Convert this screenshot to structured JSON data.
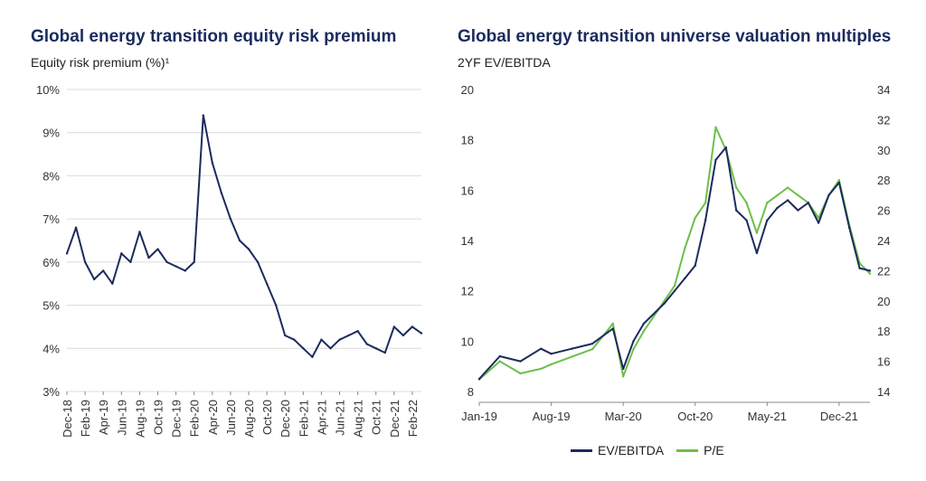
{
  "charts": {
    "left": {
      "title": "Global energy transition equity risk premium",
      "subtitle": "Equity risk premium (%)¹"
    },
    "right": {
      "title": "Global energy transition universe valuation multiples",
      "subtitle": "2YF EV/EBITDA"
    }
  },
  "colors": {
    "navy": "#1b2b5e",
    "green": "#6cc04a",
    "grid": "#dcdcdc"
  },
  "chart_data": [
    {
      "type": "line",
      "title": "Global energy transition equity risk premium",
      "ylabel": "Equity risk premium (%)¹",
      "ylim": [
        3,
        10
      ],
      "yticks": [
        "3%",
        "4%",
        "5%",
        "6%",
        "7%",
        "8%",
        "9%",
        "10%"
      ],
      "xticks": [
        "Dec-18",
        "Feb-19",
        "Apr-19",
        "Jun-19",
        "Aug-19",
        "Oct-19",
        "Dec-19",
        "Feb-20",
        "Apr-20",
        "Jun-20",
        "Aug-20",
        "Oct-20",
        "Dec-20",
        "Feb-21",
        "Apr-21",
        "Jun-21",
        "Aug-21",
        "Oct-21",
        "Dec-21",
        "Feb-22"
      ],
      "grid": "horizontal",
      "series": [
        {
          "color": "#1b2b5e",
          "x": [
            "Dec-18",
            "Jan-19",
            "Feb-19",
            "Mar-19",
            "Apr-19",
            "May-19",
            "Jun-19",
            "Jul-19",
            "Aug-19",
            "Sep-19",
            "Oct-19",
            "Nov-19",
            "Dec-19",
            "Jan-20",
            "Feb-20",
            "Mar-20",
            "Apr-20",
            "May-20",
            "Jun-20",
            "Jul-20",
            "Aug-20",
            "Sep-20",
            "Oct-20",
            "Nov-20",
            "Dec-20",
            "Jan-21",
            "Feb-21",
            "Mar-21",
            "Apr-21",
            "May-21",
            "Jun-21",
            "Jul-21",
            "Aug-21",
            "Sep-21",
            "Oct-21",
            "Nov-21",
            "Dec-21",
            "Jan-22",
            "Feb-22",
            "Mar-22"
          ],
          "values": [
            6.2,
            6.8,
            6.0,
            5.6,
            5.8,
            5.5,
            6.2,
            6.0,
            6.7,
            6.1,
            6.3,
            6.0,
            5.9,
            5.8,
            6.0,
            9.4,
            8.3,
            7.6,
            7.0,
            6.5,
            6.3,
            6.0,
            5.5,
            5.0,
            4.3,
            4.2,
            4.0,
            3.8,
            4.2,
            4.0,
            4.2,
            4.3,
            4.4,
            4.1,
            4.0,
            3.9,
            4.5,
            4.3,
            4.5,
            4.35
          ]
        }
      ]
    },
    {
      "type": "line",
      "title": "Global energy transition universe valuation multiples",
      "ylabel": "2YF EV/EBITDA",
      "ylim": [
        8,
        20
      ],
      "ylim_right": [
        14,
        34
      ],
      "yticks": [
        "8",
        "10",
        "12",
        "14",
        "16",
        "18",
        "20"
      ],
      "yticks_right": [
        "14",
        "16",
        "18",
        "20",
        "22",
        "24",
        "26",
        "28",
        "30",
        "32",
        "34"
      ],
      "xticks": [
        "Jan-19",
        "Aug-19",
        "Mar-20",
        "Oct-20",
        "May-21",
        "Dec-21"
      ],
      "legend_position": "bottom",
      "series": [
        {
          "name": "EV/EBITDA",
          "axis": "left",
          "color": "#1b2b5e",
          "x": [
            "Jan-19",
            "Mar-19",
            "May-19",
            "Jul-19",
            "Aug-19",
            "Oct-19",
            "Dec-19",
            "Feb-20",
            "Mar-20",
            "Apr-20",
            "May-20",
            "Jul-20",
            "Aug-20",
            "Sep-20",
            "Oct-20",
            "Nov-20",
            "Dec-20",
            "Jan-21",
            "Feb-21",
            "Mar-21",
            "Apr-21",
            "May-21",
            "Jun-21",
            "Jul-21",
            "Aug-21",
            "Sep-21",
            "Oct-21",
            "Nov-21",
            "Dec-21",
            "Jan-22",
            "Feb-22",
            "Mar-22"
          ],
          "values": [
            8.5,
            9.4,
            9.2,
            9.7,
            9.5,
            9.7,
            9.9,
            10.5,
            8.9,
            10.0,
            10.7,
            11.5,
            12.0,
            12.5,
            13.0,
            14.8,
            17.2,
            17.7,
            15.2,
            14.8,
            13.5,
            14.8,
            15.3,
            15.6,
            15.2,
            15.5,
            14.7,
            15.8,
            16.3,
            14.5,
            12.9,
            12.8
          ]
        },
        {
          "name": "P/E",
          "axis": "right",
          "color": "#6cc04a",
          "x": [
            "Jan-19",
            "Mar-19",
            "May-19",
            "Jul-19",
            "Aug-19",
            "Oct-19",
            "Dec-19",
            "Feb-20",
            "Mar-20",
            "Apr-20",
            "May-20",
            "Jul-20",
            "Aug-20",
            "Sep-20",
            "Oct-20",
            "Nov-20",
            "Dec-20",
            "Jan-21",
            "Feb-21",
            "Mar-21",
            "Apr-21",
            "May-21",
            "Jun-21",
            "Jul-21",
            "Aug-21",
            "Sep-21",
            "Oct-21",
            "Nov-21",
            "Dec-21",
            "Jan-22",
            "Feb-22",
            "Mar-22"
          ],
          "values": [
            14.8,
            16.0,
            15.2,
            15.5,
            15.8,
            16.3,
            16.8,
            18.5,
            15.0,
            16.8,
            18.0,
            20.0,
            21.0,
            23.5,
            25.5,
            26.5,
            31.5,
            30.0,
            27.5,
            26.5,
            24.5,
            26.5,
            27.0,
            27.5,
            27.0,
            26.5,
            25.5,
            27.0,
            28.0,
            25.0,
            22.5,
            21.8
          ]
        }
      ]
    }
  ]
}
